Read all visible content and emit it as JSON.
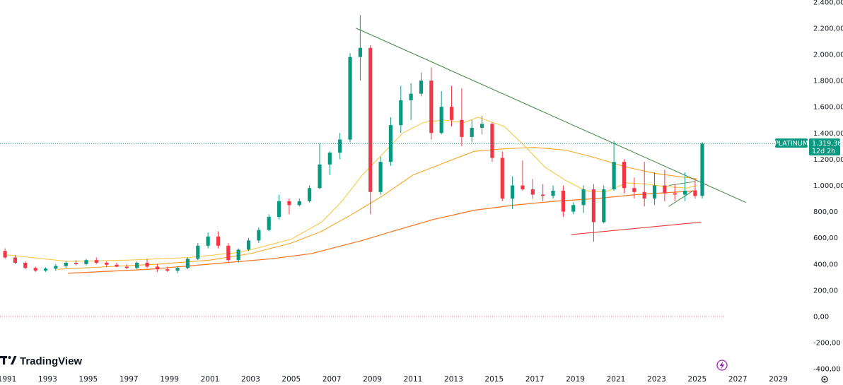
{
  "chart_data": {
    "type": "candlestick",
    "symbol": "PLATINUM",
    "last_price": "1.319,36",
    "countdown": "12d 2h",
    "watermark": "TradingView",
    "y_ticks": [
      {
        "v": 2400,
        "label": "2.400,00"
      },
      {
        "v": 2200,
        "label": "2.200,00"
      },
      {
        "v": 2000,
        "label": "2.000,00"
      },
      {
        "v": 1800,
        "label": "1.800,00"
      },
      {
        "v": 1600,
        "label": "1.600,00"
      },
      {
        "v": 1400,
        "label": "1.400,00"
      },
      {
        "v": 1200,
        "label": "1.200,00"
      },
      {
        "v": 1000,
        "label": "1.000,00"
      },
      {
        "v": 800,
        "label": "800,00"
      },
      {
        "v": 600,
        "label": "600,00"
      },
      {
        "v": 400,
        "label": "400,00"
      },
      {
        "v": 200,
        "label": "200,00"
      },
      {
        "v": 0,
        "label": "0,00"
      },
      {
        "v": -200,
        "label": "-200,00"
      },
      {
        "v": -400,
        "label": "-400,00"
      }
    ],
    "x_ticks": [
      "1991",
      "1993",
      "1995",
      "1997",
      "1999",
      "2001",
      "2003",
      "2005",
      "2007",
      "2009",
      "2011",
      "2013",
      "2015",
      "2017",
      "2019",
      "2021",
      "2023",
      "2025",
      "2027",
      "2029"
    ],
    "ohlc": [
      [
        1990.9,
        500,
        520,
        440,
        450
      ],
      [
        1991.4,
        450,
        470,
        400,
        410
      ],
      [
        1991.9,
        410,
        420,
        360,
        370
      ],
      [
        1992.4,
        370,
        380,
        340,
        350
      ],
      [
        1992.9,
        350,
        375,
        340,
        365
      ],
      [
        1993.4,
        365,
        400,
        350,
        385
      ],
      [
        1993.9,
        385,
        420,
        370,
        410
      ],
      [
        1994.4,
        410,
        430,
        390,
        400
      ],
      [
        1994.9,
        400,
        440,
        390,
        430
      ],
      [
        1995.4,
        430,
        450,
        400,
        410
      ],
      [
        1995.9,
        410,
        420,
        380,
        395
      ],
      [
        1996.4,
        395,
        410,
        375,
        380
      ],
      [
        1996.9,
        380,
        400,
        360,
        370
      ],
      [
        1997.4,
        370,
        420,
        360,
        410
      ],
      [
        1997.9,
        410,
        440,
        370,
        380
      ],
      [
        1998.4,
        380,
        400,
        340,
        360
      ],
      [
        1998.9,
        360,
        380,
        340,
        350
      ],
      [
        1999.4,
        350,
        380,
        330,
        370
      ],
      [
        1999.9,
        370,
        450,
        360,
        440
      ],
      [
        2000.4,
        440,
        560,
        430,
        540
      ],
      [
        2000.9,
        540,
        640,
        520,
        610
      ],
      [
        2001.4,
        610,
        650,
        520,
        540
      ],
      [
        2001.9,
        540,
        560,
        410,
        430
      ],
      [
        2002.4,
        430,
        520,
        410,
        510
      ],
      [
        2002.9,
        510,
        600,
        500,
        580
      ],
      [
        2003.4,
        580,
        680,
        560,
        660
      ],
      [
        2003.9,
        660,
        780,
        650,
        760
      ],
      [
        2004.4,
        760,
        930,
        740,
        880
      ],
      [
        2004.9,
        880,
        900,
        780,
        850
      ],
      [
        2005.4,
        850,
        900,
        840,
        880
      ],
      [
        2005.9,
        880,
        1000,
        870,
        980
      ],
      [
        2006.4,
        980,
        1320,
        970,
        1160
      ],
      [
        2006.9,
        1160,
        1260,
        1080,
        1250
      ],
      [
        2007.4,
        1250,
        1400,
        1200,
        1350
      ],
      [
        2007.9,
        1350,
        2010,
        1330,
        1980
      ],
      [
        2008.4,
        1980,
        2300,
        1800,
        2050
      ],
      [
        2008.9,
        2050,
        2070,
        780,
        950
      ],
      [
        2009.4,
        950,
        1220,
        930,
        1180
      ],
      [
        2009.9,
        1180,
        1520,
        1150,
        1460
      ],
      [
        2010.4,
        1460,
        1760,
        1400,
        1650
      ],
      [
        2010.9,
        1650,
        1780,
        1500,
        1700
      ],
      [
        2011.4,
        1700,
        1860,
        1680,
        1800
      ],
      [
        2011.9,
        1800,
        1900,
        1350,
        1400
      ],
      [
        2012.4,
        1400,
        1720,
        1390,
        1600
      ],
      [
        2012.9,
        1600,
        1760,
        1450,
        1500
      ],
      [
        2013.4,
        1500,
        1740,
        1300,
        1370
      ],
      [
        2013.9,
        1370,
        1500,
        1330,
        1440
      ],
      [
        2014.4,
        1440,
        1530,
        1390,
        1470
      ],
      [
        2014.9,
        1470,
        1480,
        1180,
        1210
      ],
      [
        2015.4,
        1210,
        1260,
        880,
        900
      ],
      [
        2015.9,
        900,
        1070,
        820,
        1000
      ],
      [
        2016.4,
        1000,
        1190,
        960,
        970
      ],
      [
        2016.9,
        970,
        1050,
        900,
        930
      ],
      [
        2017.4,
        930,
        1010,
        880,
        920
      ],
      [
        2017.9,
        920,
        1000,
        900,
        960
      ],
      [
        2018.4,
        960,
        1000,
        760,
        800
      ],
      [
        2018.9,
        800,
        870,
        780,
        850
      ],
      [
        2019.4,
        850,
        1000,
        790,
        970
      ],
      [
        2019.9,
        970,
        1010,
        570,
        720
      ],
      [
        2020.4,
        720,
        1000,
        710,
        970
      ],
      [
        2020.9,
        970,
        1340,
        960,
        1180
      ],
      [
        2021.4,
        1180,
        1200,
        940,
        980
      ],
      [
        2021.9,
        980,
        1060,
        900,
        950
      ],
      [
        2022.4,
        950,
        1180,
        840,
        900
      ],
      [
        2022.9,
        900,
        1100,
        850,
        1000
      ],
      [
        2023.4,
        1000,
        1120,
        880,
        940
      ],
      [
        2023.9,
        940,
        1010,
        880,
        930
      ],
      [
        2024.4,
        930,
        1100,
        880,
        960
      ],
      [
        2024.9,
        960,
        1050,
        900,
        920
      ],
      [
        2025.25,
        920,
        1330,
        900,
        1319.36
      ]
    ],
    "ma_yellow": [
      [
        1991,
        470
      ],
      [
        1994,
        420
      ],
      [
        1997,
        430
      ],
      [
        2000,
        450
      ],
      [
        2002.5,
        490
      ],
      [
        2005,
        590
      ],
      [
        2006.5,
        720
      ],
      [
        2007.5,
        880
      ],
      [
        2008.5,
        1080
      ],
      [
        2009.5,
        1240
      ],
      [
        2010.5,
        1400
      ],
      [
        2011.5,
        1480
      ],
      [
        2012.5,
        1500
      ],
      [
        2013.5,
        1480
      ],
      [
        2014.2,
        1520
      ],
      [
        2015.5,
        1450
      ],
      [
        2016.5,
        1300
      ],
      [
        2017.5,
        1140
      ],
      [
        2018.5,
        1040
      ],
      [
        2019.5,
        960
      ],
      [
        2020.5,
        950
      ],
      [
        2021.5,
        1020
      ],
      [
        2022.5,
        1010
      ],
      [
        2023.5,
        990
      ],
      [
        2024.5,
        980
      ],
      [
        2025,
        1000
      ]
    ],
    "ma_orange": [
      [
        1993.5,
        360
      ],
      [
        1996,
        380
      ],
      [
        1998.5,
        400
      ],
      [
        2001,
        430
      ],
      [
        2003,
        480
      ],
      [
        2005,
        560
      ],
      [
        2006.5,
        650
      ],
      [
        2008,
        780
      ],
      [
        2009.5,
        920
      ],
      [
        2011,
        1080
      ],
      [
        2012.5,
        1170
      ],
      [
        2014,
        1260
      ],
      [
        2015.5,
        1280
      ],
      [
        2017,
        1290
      ],
      [
        2018.5,
        1270
      ],
      [
        2020,
        1210
      ],
      [
        2021.5,
        1140
      ],
      [
        2023,
        1090
      ],
      [
        2024.5,
        1060
      ],
      [
        2025,
        1050
      ]
    ],
    "ma_darkorange": [
      [
        1994,
        330
      ],
      [
        1998,
        360
      ],
      [
        2001,
        400
      ],
      [
        2004,
        440
      ],
      [
        2006,
        480
      ],
      [
        2007.5,
        540
      ],
      [
        2008.5,
        580
      ],
      [
        2010,
        650
      ],
      [
        2012,
        740
      ],
      [
        2014,
        810
      ],
      [
        2016,
        850
      ],
      [
        2018,
        880
      ],
      [
        2020,
        900
      ],
      [
        2022,
        930
      ],
      [
        2024,
        950
      ],
      [
        2025,
        960
      ]
    ],
    "trendline_green": [
      [
        2008.2,
        2200
      ],
      [
        2027.4,
        870
      ]
    ],
    "trendline_red": [
      [
        2018.8,
        625
      ],
      [
        2025.2,
        720
      ]
    ]
  }
}
